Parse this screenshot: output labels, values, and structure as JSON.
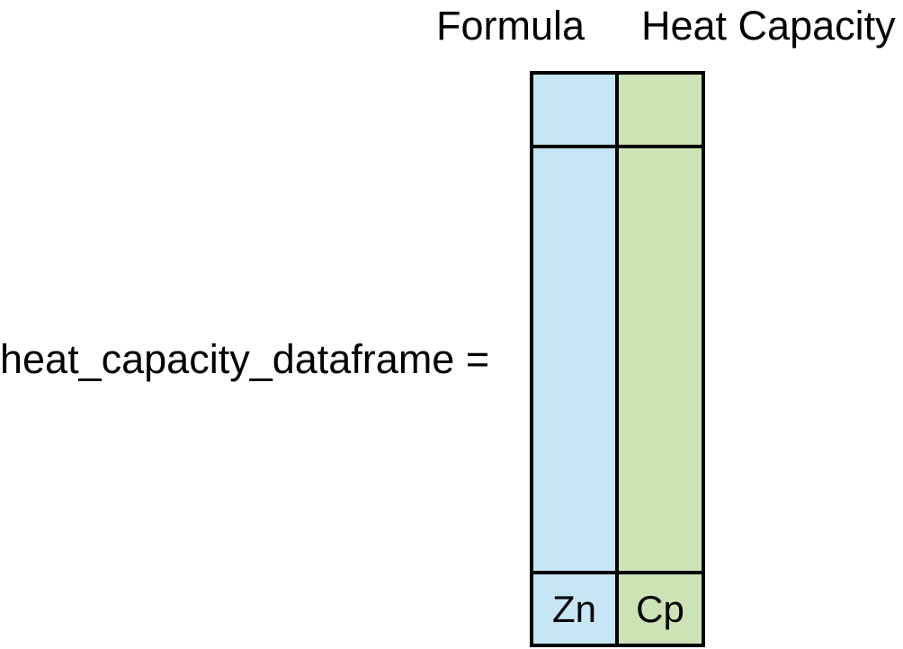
{
  "headers": {
    "formula": "Formula",
    "heat_capacity": "Heat Capacity"
  },
  "assignment": {
    "label": "heat_capacity_dataframe ="
  },
  "table": {
    "formula_cell": "Zn",
    "heat_cell": "Cp"
  },
  "colors": {
    "formula_column": "#c6e6f5",
    "heat_column": "#cce3b6",
    "border": "#000000"
  }
}
